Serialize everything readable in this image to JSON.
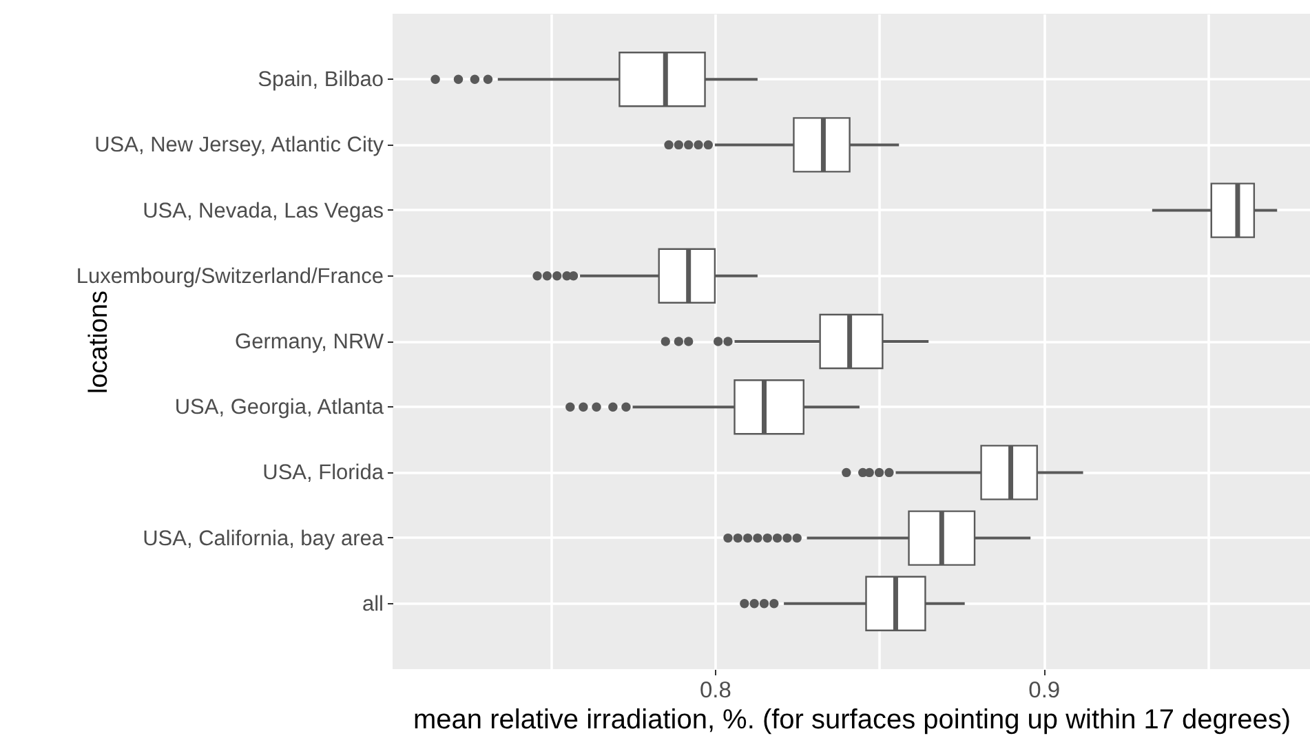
{
  "chart_data": {
    "type": "box",
    "orientation": "horizontal",
    "xlabel": "mean relative irradiation, %. (for surfaces pointing up within 17 degrees)",
    "ylabel": "locations",
    "categories": [
      "Spain, Bilbao",
      "USA, New Jersey, Atlantic City",
      "USA, Nevada, Las Vegas",
      "Luxembourg/Switzerland/France",
      "Germany, NRW",
      "USA, Georgia, Atlanta",
      "USA, Florida",
      "USA, California, bay area",
      "all"
    ],
    "boxes": [
      {
        "low": 0.734,
        "q1": 0.771,
        "median": 0.785,
        "q3": 0.797,
        "high": 0.813,
        "outliers": [
          0.715,
          0.722,
          0.727,
          0.731
        ]
      },
      {
        "low": 0.8,
        "q1": 0.824,
        "median": 0.833,
        "q3": 0.841,
        "high": 0.856,
        "outliers": [
          0.786,
          0.789,
          0.792,
          0.795,
          0.798
        ]
      },
      {
        "low": 0.933,
        "q1": 0.951,
        "median": 0.959,
        "q3": 0.964,
        "high": 0.971
      },
      {
        "low": 0.759,
        "q1": 0.783,
        "median": 0.792,
        "q3": 0.8,
        "high": 0.813,
        "outliers": [
          0.746,
          0.749,
          0.752,
          0.755,
          0.757
        ]
      },
      {
        "low": 0.806,
        "q1": 0.832,
        "median": 0.841,
        "q3": 0.851,
        "high": 0.865,
        "outliers": [
          0.785,
          0.789,
          0.792,
          0.801,
          0.804
        ]
      },
      {
        "low": 0.775,
        "q1": 0.806,
        "median": 0.815,
        "q3": 0.827,
        "high": 0.844,
        "outliers": [
          0.756,
          0.76,
          0.764,
          0.769,
          0.773
        ]
      },
      {
        "low": 0.855,
        "q1": 0.881,
        "median": 0.89,
        "q3": 0.898,
        "high": 0.912,
        "outliers": [
          0.84,
          0.845,
          0.847,
          0.85,
          0.853
        ]
      },
      {
        "low": 0.828,
        "q1": 0.859,
        "median": 0.869,
        "q3": 0.879,
        "high": 0.896,
        "outliers": [
          0.804,
          0.807,
          0.81,
          0.813,
          0.816,
          0.819,
          0.822,
          0.825
        ]
      },
      {
        "low": 0.821,
        "q1": 0.846,
        "median": 0.855,
        "q3": 0.864,
        "high": 0.876,
        "outliers": [
          0.809,
          0.812,
          0.815,
          0.818
        ]
      }
    ],
    "xlim": [
      0.702,
      0.981
    ],
    "xticks": [
      {
        "value": 0.75,
        "label": null
      },
      0.8,
      {
        "value": 0.85,
        "label": null
      },
      0.9,
      {
        "value": 0.95,
        "label": null
      }
    ],
    "grid": true
  }
}
